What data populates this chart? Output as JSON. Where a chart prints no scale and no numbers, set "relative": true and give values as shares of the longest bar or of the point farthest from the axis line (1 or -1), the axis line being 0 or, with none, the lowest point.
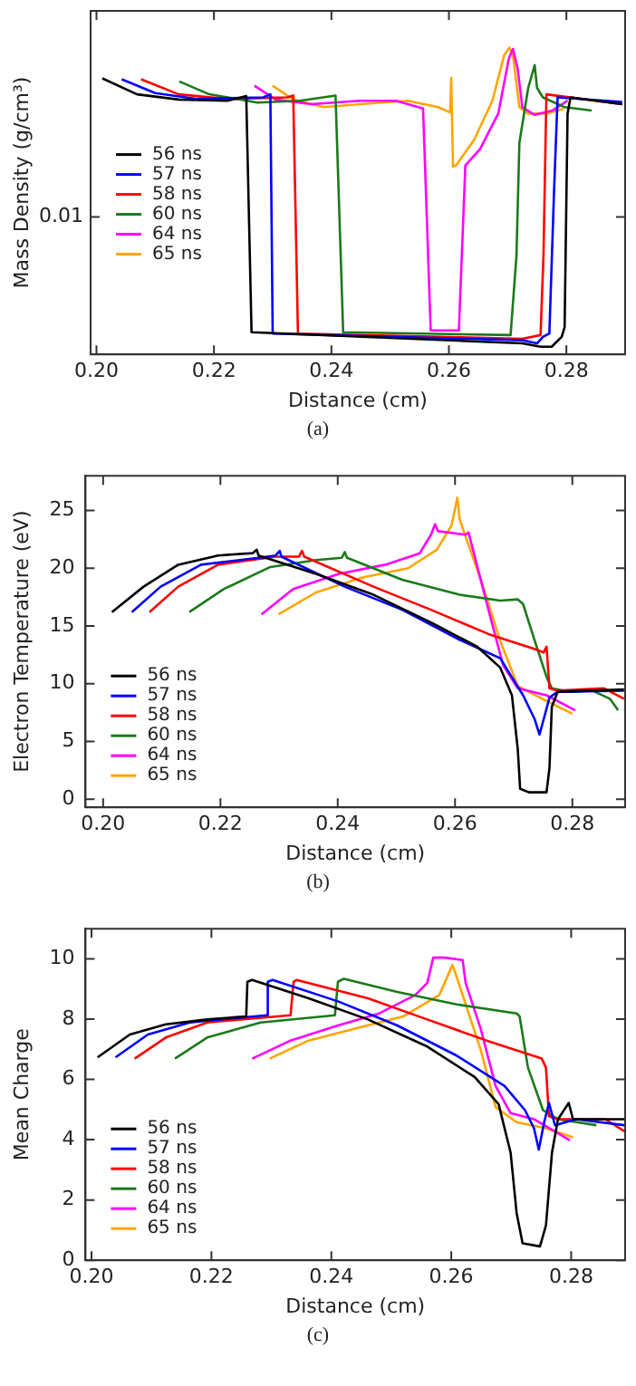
{
  "chart_data": [
    {
      "type": "line",
      "relative": true,
      "xlabel": "Distance (cm)",
      "ylabel": "Mass Density (g/cm³)",
      "xlim": [
        0.199,
        0.29
      ],
      "xticks": [
        {
          "value": 0.2,
          "label": "0.20"
        },
        {
          "value": 0.22,
          "label": "0.22"
        },
        {
          "value": 0.24,
          "label": "0.24"
        },
        {
          "value": 0.26,
          "label": "0.26"
        },
        {
          "value": 0.28,
          "label": "0.28"
        }
      ],
      "grid": false,
      "legend": "left",
      "marker": "none",
      "line_style": "solid",
      "annotations": [
        "0.01"
      ],
      "title": "(a)",
      "series": [
        {
          "name": "56 ns",
          "color": "#000000",
          "x": [
            0.201,
            0.2069,
            0.214,
            0.2223,
            0.2255,
            0.2264,
            0.2725,
            0.2756,
            0.2775,
            0.2792,
            0.2797,
            0.2802,
            0.2807,
            0.2895
          ],
          "values": [
            0.9,
            0.848,
            0.831,
            0.827,
            0.842,
            0.072,
            0.036,
            0.025,
            0.025,
            0.057,
            0.089,
            0.785,
            0.838,
            0.816
          ]
        },
        {
          "name": "57 ns",
          "color": "#0000ff",
          "x": [
            0.2043,
            0.21,
            0.2171,
            0.2284,
            0.2296,
            0.23,
            0.2725,
            0.275,
            0.276,
            0.2771,
            0.2779,
            0.2785,
            0.2895
          ],
          "values": [
            0.897,
            0.852,
            0.833,
            0.838,
            0.848,
            0.068,
            0.046,
            0.036,
            0.057,
            0.068,
            0.532,
            0.838,
            0.823
          ]
        },
        {
          "name": "58 ns",
          "color": "#ff0000",
          "x": [
            0.2076,
            0.214,
            0.2223,
            0.2325,
            0.2335,
            0.2343,
            0.2725,
            0.2756,
            0.2761,
            0.2766,
            0.2895
          ],
          "values": [
            0.897,
            0.848,
            0.833,
            0.838,
            0.844,
            0.068,
            0.051,
            0.063,
            0.321,
            0.848,
            0.816
          ]
        },
        {
          "name": "60 ns",
          "color": "#1a7a1a",
          "x": [
            0.2141,
            0.2192,
            0.2274,
            0.2346,
            0.2407,
            0.242,
            0.2705,
            0.2715,
            0.272,
            0.2735,
            0.2746,
            0.275,
            0.276,
            0.2797,
            0.2843
          ],
          "values": [
            0.89,
            0.848,
            0.821,
            0.827,
            0.844,
            0.072,
            0.063,
            0.321,
            0.69,
            0.869,
            0.943,
            0.869,
            0.838,
            0.806,
            0.795
          ]
        },
        {
          "name": "64 ns",
          "color": "#ff00ff",
          "x": [
            0.2269,
            0.2305,
            0.2366,
            0.2448,
            0.251,
            0.2556,
            0.2569,
            0.2617,
            0.2628,
            0.2653,
            0.2684,
            0.2702,
            0.2709,
            0.2717,
            0.2725,
            0.2746,
            0.2776,
            0.2802
          ],
          "values": [
            0.876,
            0.831,
            0.816,
            0.827,
            0.827,
            0.802,
            0.078,
            0.078,
            0.616,
            0.669,
            0.785,
            0.964,
            0.996,
            0.932,
            0.806,
            0.781,
            0.795,
            0.827
          ]
        },
        {
          "name": "65 ns",
          "color": "#ffa500",
          "x": [
            0.23,
            0.2335,
            0.2387,
            0.2448,
            0.253,
            0.2582,
            0.2602,
            0.2604,
            0.2607,
            0.2612,
            0.2643,
            0.2674,
            0.2694,
            0.2703,
            0.2709,
            0.272,
            0.2735,
            0.2766,
            0.2795
          ],
          "values": [
            0.876,
            0.831,
            0.806,
            0.816,
            0.827,
            0.806,
            0.789,
            0.901,
            0.612,
            0.616,
            0.7,
            0.827,
            0.975,
            1.0,
            0.975,
            0.806,
            0.785,
            0.785,
            0.8
          ]
        }
      ]
    },
    {
      "type": "line",
      "xlabel": "Distance (cm)",
      "ylabel": "Electron Temperature (eV)",
      "xlim": [
        0.197,
        0.289
      ],
      "xticks": [
        {
          "value": 0.2,
          "label": "0.20"
        },
        {
          "value": 0.22,
          "label": "0.22"
        },
        {
          "value": 0.24,
          "label": "0.24"
        },
        {
          "value": 0.26,
          "label": "0.26"
        },
        {
          "value": 0.28,
          "label": "0.28"
        }
      ],
      "ylim": [
        -0.7,
        28
      ],
      "yticks": [
        0,
        5,
        10,
        15,
        20,
        25
      ],
      "grid": false,
      "legend": "bottom left",
      "marker": "none",
      "line_style": "solid",
      "title": "(b)",
      "series": [
        {
          "name": "56 ns",
          "color": "#000000",
          "x": [
            0.2015,
            0.2069,
            0.2128,
            0.2196,
            0.2255,
            0.2262,
            0.2265,
            0.2363,
            0.2461,
            0.2559,
            0.2638,
            0.2677,
            0.2697,
            0.2707,
            0.2711,
            0.2726,
            0.2756,
            0.2761,
            0.2765,
            0.2775,
            0.2888
          ],
          "values": [
            16.2,
            18.4,
            20.3,
            21.1,
            21.3,
            21.6,
            21.1,
            19.5,
            17.7,
            15.3,
            13.2,
            11.4,
            9.0,
            4.3,
            0.9,
            0.6,
            0.6,
            2.7,
            8.0,
            9.3,
            9.5
          ]
        },
        {
          "name": "57 ns",
          "color": "#0000ff",
          "x": [
            0.2049,
            0.2098,
            0.2167,
            0.2265,
            0.2294,
            0.2301,
            0.2304,
            0.2412,
            0.251,
            0.2608,
            0.2677,
            0.2716,
            0.2736,
            0.2744,
            0.2751,
            0.2761,
            0.2775,
            0.2888
          ],
          "values": [
            16.2,
            18.4,
            20.3,
            20.9,
            21.1,
            21.5,
            21.0,
            18.4,
            16.4,
            13.8,
            12.2,
            9.0,
            6.9,
            5.6,
            6.9,
            8.8,
            9.3,
            9.4
          ]
        },
        {
          "name": "58 ns",
          "color": "#ff0000",
          "x": [
            0.2079,
            0.2128,
            0.2196,
            0.2294,
            0.2334,
            0.2339,
            0.2343,
            0.2461,
            0.2559,
            0.2657,
            0.2736,
            0.2751,
            0.2756,
            0.2761,
            0.2775,
            0.2854,
            0.2888
          ],
          "values": [
            16.2,
            18.4,
            20.3,
            21.0,
            21.0,
            21.5,
            21.0,
            18.4,
            16.4,
            14.3,
            13.0,
            12.7,
            13.2,
            9.6,
            9.4,
            9.6,
            8.7
          ]
        },
        {
          "name": "60 ns",
          "color": "#1a7a1a",
          "x": [
            0.2147,
            0.2206,
            0.2285,
            0.2363,
            0.2407,
            0.2412,
            0.2416,
            0.251,
            0.2608,
            0.2677,
            0.2707,
            0.2716,
            0.2736,
            0.2756,
            0.2765,
            0.2795,
            0.2834,
            0.2864,
            0.2878
          ],
          "values": [
            16.2,
            18.2,
            20.1,
            20.7,
            20.9,
            21.4,
            20.9,
            19.0,
            17.7,
            17.2,
            17.3,
            16.9,
            13.7,
            10.6,
            9.6,
            9.3,
            9.4,
            8.7,
            7.7
          ]
        },
        {
          "name": "64 ns",
          "color": "#ff00ff",
          "x": [
            0.227,
            0.2324,
            0.2402,
            0.2481,
            0.254,
            0.2559,
            0.2566,
            0.2571,
            0.2618,
            0.2623,
            0.2657,
            0.2682,
            0.2707,
            0.2756,
            0.2805
          ],
          "values": [
            16.0,
            18.2,
            19.5,
            20.3,
            21.3,
            22.9,
            23.8,
            23.2,
            22.9,
            23.1,
            16.4,
            11.6,
            9.6,
            9.0,
            7.7
          ]
        },
        {
          "name": "65 ns",
          "color": "#ffa500",
          "x": [
            0.2299,
            0.2363,
            0.2442,
            0.252,
            0.2569,
            0.2594,
            0.2604,
            0.2608,
            0.2648,
            0.2677,
            0.2707,
            0.2756,
            0.28
          ],
          "values": [
            16.0,
            17.9,
            19.2,
            20.0,
            21.6,
            23.7,
            26.1,
            24.2,
            18.4,
            13.7,
            9.8,
            8.5,
            7.4
          ]
        }
      ]
    },
    {
      "type": "line",
      "xlabel": "Distance (cm)",
      "ylabel": "Mean Charge",
      "xlim": [
        0.199,
        0.289
      ],
      "xticks": [
        {
          "value": 0.2,
          "label": "0.20"
        },
        {
          "value": 0.22,
          "label": "0.22"
        },
        {
          "value": 0.24,
          "label": "0.24"
        },
        {
          "value": 0.26,
          "label": "0.26"
        },
        {
          "value": 0.28,
          "label": "0.28"
        }
      ],
      "ylim": [
        0,
        11
      ],
      "yticks": [
        0,
        2,
        4,
        6,
        8,
        10
      ],
      "grid": false,
      "legend": "bottom left",
      "marker": "none",
      "line_style": "solid",
      "title": "(c)",
      "series": [
        {
          "name": "56 ns",
          "color": "#000000",
          "x": [
            0.201,
            0.2064,
            0.2124,
            0.2193,
            0.2258,
            0.226,
            0.2268,
            0.2362,
            0.2461,
            0.256,
            0.2639,
            0.2679,
            0.2699,
            0.2709,
            0.2719,
            0.2748,
            0.2758,
            0.2768,
            0.2778,
            0.2788,
            0.2796,
            0.2803,
            0.2889
          ],
          "values": [
            6.73,
            7.49,
            7.83,
            7.99,
            8.09,
            9.24,
            9.3,
            8.69,
            7.99,
            7.09,
            6.08,
            5.18,
            3.57,
            1.57,
            0.56,
            0.46,
            1.16,
            3.57,
            4.68,
            4.98,
            5.22,
            4.68,
            4.68
          ]
        },
        {
          "name": "57 ns",
          "color": "#0000ff",
          "x": [
            0.204,
            0.2094,
            0.2164,
            0.2292,
            0.2294,
            0.2302,
            0.2411,
            0.251,
            0.2609,
            0.2689,
            0.2723,
            0.2738,
            0.2746,
            0.2755,
            0.2763,
            0.2773,
            0.2808,
            0.2889
          ],
          "values": [
            6.73,
            7.49,
            7.89,
            8.13,
            9.24,
            9.3,
            8.59,
            7.79,
            6.79,
            5.78,
            4.98,
            4.38,
            3.67,
            4.58,
            5.22,
            4.48,
            4.68,
            4.48
          ]
        },
        {
          "name": "58 ns",
          "color": "#ff0000",
          "x": [
            0.2072,
            0.2124,
            0.2193,
            0.2332,
            0.2337,
            0.2342,
            0.2461,
            0.256,
            0.2659,
            0.2751,
            0.2758,
            0.2763,
            0.2778,
            0.2857,
            0.2889
          ],
          "values": [
            6.69,
            7.39,
            7.89,
            8.13,
            9.24,
            9.3,
            8.69,
            7.99,
            7.29,
            6.69,
            6.39,
            4.78,
            4.68,
            4.68,
            4.28
          ]
        },
        {
          "name": "60 ns",
          "color": "#1a7a1a",
          "x": [
            0.2139,
            0.2193,
            0.2282,
            0.2406,
            0.2411,
            0.2421,
            0.251,
            0.2609,
            0.2709,
            0.2714,
            0.2728,
            0.2753,
            0.2778,
            0.2842
          ],
          "values": [
            6.69,
            7.39,
            7.89,
            8.13,
            9.24,
            9.34,
            8.9,
            8.49,
            8.19,
            8.09,
            6.39,
            4.98,
            4.68,
            4.48
          ]
        },
        {
          "name": "64 ns",
          "color": "#ff00ff",
          "x": [
            0.2268,
            0.2332,
            0.2411,
            0.248,
            0.254,
            0.256,
            0.257,
            0.259,
            0.2619,
            0.2624,
            0.2649,
            0.2674,
            0.2699,
            0.2738,
            0.2798
          ],
          "values": [
            6.69,
            7.29,
            7.79,
            8.19,
            8.8,
            9.2,
            10.04,
            10.04,
            9.96,
            9.2,
            7.69,
            5.78,
            4.88,
            4.68,
            3.98
          ]
        },
        {
          "name": "65 ns",
          "color": "#ffa500",
          "x": [
            0.2297,
            0.2362,
            0.2441,
            0.252,
            0.258,
            0.2602,
            0.2609,
            0.2649,
            0.2674,
            0.2709,
            0.2758,
            0.2803
          ],
          "values": [
            6.69,
            7.29,
            7.69,
            8.09,
            8.8,
            9.8,
            9.4,
            6.99,
            5.08,
            4.58,
            4.38,
            4.08
          ]
        }
      ]
    }
  ]
}
